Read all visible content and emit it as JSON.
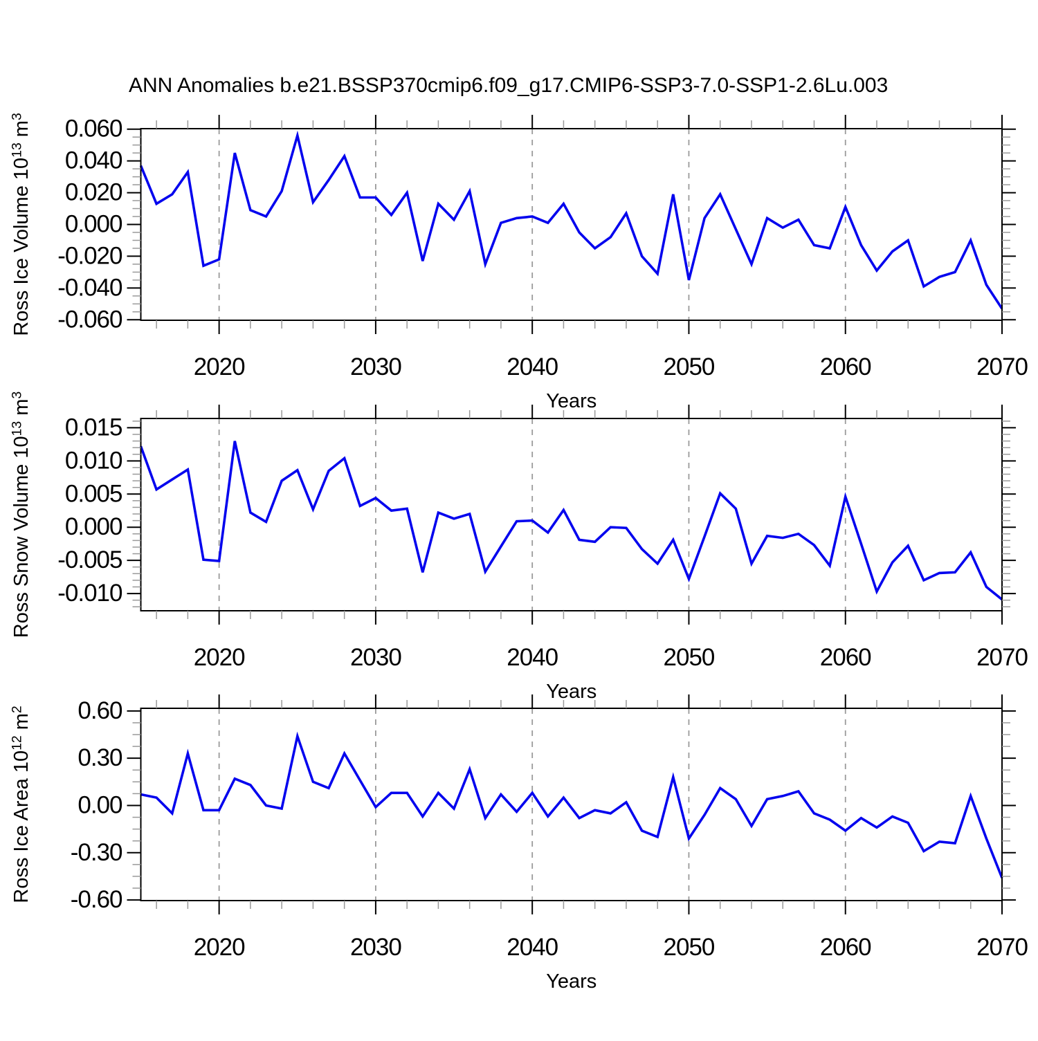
{
  "figure_title": "ANN Anomalies b.e21.BSSP370cmip6.f09_g17.CMIP6-SSP3-7.0-SSP1-2.6Lu.003",
  "colors": {
    "line": "#0404ee",
    "grid_dashed": "#9a9a9a",
    "axis": "#000000",
    "minor_tick": "#999999",
    "background": "#ffffff"
  },
  "chart_data": [
    {
      "type": "line",
      "id": "ross-ice-volume",
      "ylabel": "Ross Ice Volume 10^13 m^3",
      "xlabel": "Years",
      "legend": "none",
      "grid": "vertical-dashed",
      "grid_years": [
        2020,
        2030,
        2040,
        2050,
        2060
      ],
      "xlim": [
        2015,
        2070
      ],
      "x_major_ticks": [
        2020,
        2030,
        2040,
        2050,
        2060,
        2070
      ],
      "x_minor_step": 2,
      "ylim": [
        -0.0603,
        0.0603
      ],
      "y_tick_values": [
        0.06,
        0.04,
        0.02,
        0.0,
        -0.02,
        -0.04,
        -0.06
      ],
      "y_tick_labels": [
        "0.060",
        "0.040",
        "0.020",
        "0.000",
        "-0.020",
        "-0.040",
        "-0.060"
      ],
      "y_minor_step": 0.005,
      "x": [
        2015,
        2016,
        2017,
        2018,
        2019,
        2020,
        2021,
        2022,
        2023,
        2024,
        2025,
        2026,
        2027,
        2028,
        2029,
        2030,
        2031,
        2032,
        2033,
        2034,
        2035,
        2036,
        2037,
        2038,
        2039,
        2040,
        2041,
        2042,
        2043,
        2044,
        2045,
        2046,
        2047,
        2048,
        2049,
        2050,
        2051,
        2052,
        2053,
        2054,
        2055,
        2056,
        2057,
        2058,
        2059,
        2060,
        2061,
        2062,
        2063,
        2064,
        2065,
        2066,
        2067,
        2068,
        2069,
        2070
      ],
      "series": [
        {
          "name": "Ross Ice Volume anomaly",
          "values": [
            0.037,
            0.013,
            0.019,
            0.033,
            -0.026,
            -0.022,
            0.045,
            0.009,
            0.005,
            0.021,
            0.056,
            0.014,
            0.028,
            0.043,
            0.017,
            0.017,
            0.006,
            0.02,
            -0.023,
            0.013,
            0.003,
            0.021,
            -0.025,
            0.001,
            0.004,
            0.005,
            0.001,
            0.013,
            -0.005,
            -0.015,
            -0.008,
            0.007,
            -0.02,
            -0.031,
            0.019,
            -0.035,
            0.004,
            0.019,
            -0.003,
            -0.025,
            0.004,
            -0.002,
            0.003,
            -0.013,
            -0.015,
            0.011,
            -0.013,
            -0.029,
            -0.017,
            -0.01,
            -0.039,
            -0.033,
            -0.03,
            -0.01,
            -0.038,
            -0.053
          ]
        }
      ]
    },
    {
      "type": "line",
      "id": "ross-snow-volume",
      "ylabel": "Ross Snow Volume 10^13 m^3",
      "xlabel": "Years",
      "legend": "none",
      "grid": "vertical-dashed",
      "grid_years": [
        2020,
        2030,
        2040,
        2050,
        2060
      ],
      "xlim": [
        2015,
        2070
      ],
      "x_major_ticks": [
        2020,
        2030,
        2040,
        2050,
        2060,
        2070
      ],
      "x_minor_step": 2,
      "ylim": [
        -0.0126,
        0.0164
      ],
      "y_tick_values": [
        0.015,
        0.01,
        0.005,
        0.0,
        -0.005,
        -0.01
      ],
      "y_tick_labels": [
        "0.015",
        "0.010",
        "0.005",
        "0.000",
        "-0.005",
        "-0.010"
      ],
      "y_minor_step": 0.001,
      "x": [
        2015,
        2016,
        2017,
        2018,
        2019,
        2020,
        2021,
        2022,
        2023,
        2024,
        2025,
        2026,
        2027,
        2028,
        2029,
        2030,
        2031,
        2032,
        2033,
        2034,
        2035,
        2036,
        2037,
        2038,
        2039,
        2040,
        2041,
        2042,
        2043,
        2044,
        2045,
        2046,
        2047,
        2048,
        2049,
        2050,
        2051,
        2052,
        2053,
        2054,
        2055,
        2056,
        2057,
        2058,
        2059,
        2060,
        2061,
        2062,
        2063,
        2064,
        2065,
        2066,
        2067,
        2068,
        2069,
        2070
      ],
      "series": [
        {
          "name": "Ross Snow Volume anomaly",
          "values": [
            0.0122,
            0.0057,
            0.0072,
            0.0087,
            -0.0049,
            -0.0051,
            0.013,
            0.0022,
            0.0008,
            0.007,
            0.0086,
            0.0027,
            0.0085,
            0.0104,
            0.0032,
            0.0044,
            0.0025,
            0.0028,
            -0.0068,
            0.0022,
            0.0013,
            0.002,
            -0.0067,
            -0.0029,
            0.0009,
            0.001,
            -0.0008,
            0.0026,
            -0.0019,
            -0.0022,
            0.0,
            -0.0001,
            -0.0033,
            -0.0055,
            -0.0019,
            -0.0078,
            -0.0014,
            0.0051,
            0.0028,
            -0.0055,
            -0.0013,
            -0.0016,
            -0.001,
            -0.0027,
            -0.0058,
            0.0046,
            -0.0025,
            -0.0097,
            -0.0053,
            -0.0028,
            -0.008,
            -0.0069,
            -0.0068,
            -0.0038,
            -0.009,
            -0.0109
          ]
        }
      ]
    },
    {
      "type": "line",
      "id": "ross-ice-area",
      "ylabel": "Ross Ice Area 10^12 m^2",
      "xlabel": "Years",
      "legend": "none",
      "grid": "vertical-dashed",
      "grid_years": [
        2020,
        2030,
        2040,
        2050,
        2060
      ],
      "xlim": [
        2015,
        2070
      ],
      "x_major_ticks": [
        2020,
        2030,
        2040,
        2050,
        2060,
        2070
      ],
      "x_minor_step": 2,
      "ylim": [
        -0.604,
        0.617
      ],
      "y_tick_values": [
        0.6,
        0.3,
        0.0,
        -0.3,
        -0.6
      ],
      "y_tick_labels": [
        "0.60",
        "0.30",
        "0.00",
        "-0.30",
        "-0.60"
      ],
      "y_minor_step": 0.075,
      "x": [
        2015,
        2016,
        2017,
        2018,
        2019,
        2020,
        2021,
        2022,
        2023,
        2024,
        2025,
        2026,
        2027,
        2028,
        2029,
        2030,
        2031,
        2032,
        2033,
        2034,
        2035,
        2036,
        2037,
        2038,
        2039,
        2040,
        2041,
        2042,
        2043,
        2044,
        2045,
        2046,
        2047,
        2048,
        2049,
        2050,
        2051,
        2052,
        2053,
        2054,
        2055,
        2056,
        2057,
        2058,
        2059,
        2060,
        2061,
        2062,
        2063,
        2064,
        2065,
        2066,
        2067,
        2068,
        2069,
        2070
      ],
      "series": [
        {
          "name": "Ross Ice Area anomaly",
          "values": [
            0.07,
            0.05,
            -0.05,
            0.33,
            -0.03,
            -0.03,
            0.17,
            0.13,
            0.0,
            -0.02,
            0.44,
            0.15,
            0.11,
            0.33,
            0.16,
            -0.01,
            0.08,
            0.08,
            -0.07,
            0.08,
            -0.02,
            0.23,
            -0.08,
            0.07,
            -0.04,
            0.08,
            -0.07,
            0.05,
            -0.08,
            -0.03,
            -0.05,
            0.02,
            -0.16,
            -0.2,
            0.18,
            -0.21,
            -0.06,
            0.11,
            0.04,
            -0.13,
            0.04,
            0.06,
            0.09,
            -0.05,
            -0.09,
            -0.16,
            -0.08,
            -0.14,
            -0.07,
            -0.11,
            -0.29,
            -0.23,
            -0.24,
            0.06,
            -0.21,
            -0.46
          ]
        }
      ]
    }
  ]
}
